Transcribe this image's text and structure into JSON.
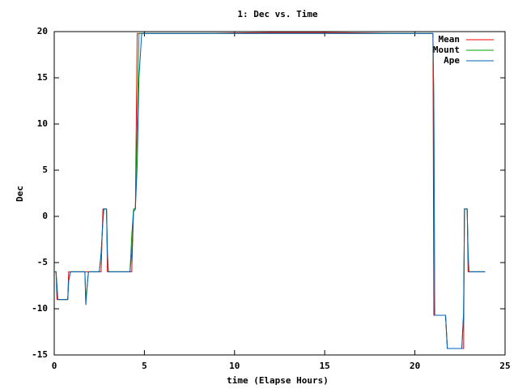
{
  "chart_data": {
    "type": "line",
    "title": "1: Dec vs. Time",
    "xlabel": "time (Elapse Hours)",
    "ylabel": "Dec",
    "x": [
      0,
      0.1,
      0.15,
      0.2,
      0.75,
      0.8,
      0.9,
      1.7,
      1.75,
      1.85,
      1.9,
      2.5,
      2.6,
      2.7,
      2.75,
      2.9,
      2.95,
      3.0,
      4.2,
      4.3,
      4.4,
      4.5,
      4.6,
      4.7,
      4.85,
      8,
      12,
      15,
      19.5,
      21.0,
      21.05,
      21.1,
      21.7,
      21.8,
      22.6,
      22.7,
      22.75,
      22.9,
      22.95,
      23.0,
      23.9
    ],
    "series": [
      {
        "name": "Mean",
        "color": "#ff0000",
        "values": [
          -6,
          -6,
          -9,
          -9,
          -9,
          -6,
          -6,
          -6,
          -6,
          -6,
          -6,
          -6,
          -6,
          0.8,
          0.8,
          0.8,
          -6,
          -6,
          -6,
          -6,
          0.8,
          0.8,
          19.8,
          19.8,
          19.8,
          19.8,
          19.9,
          19.9,
          19.8,
          19.8,
          -10.7,
          -10.7,
          -10.7,
          -14.3,
          -14.3,
          -14.3,
          0.8,
          0.8,
          -6,
          -6,
          -6
        ]
      },
      {
        "name": "Mount",
        "color": "#00a000",
        "values": [
          -6,
          -6,
          -7.5,
          -9,
          -9,
          -7,
          -6,
          -6,
          -9,
          -7,
          -6,
          -6,
          -4,
          -0.5,
          0.8,
          0.8,
          -4,
          -6,
          -6,
          -2,
          0.8,
          0.8,
          10,
          19.8,
          19.8,
          19.8,
          19.8,
          19.8,
          19.8,
          19.8,
          12.3,
          -10.7,
          -10.7,
          -14.3,
          -14.3,
          -10.5,
          0.8,
          0.8,
          -4,
          -6,
          -6
        ]
      },
      {
        "name": "Ape",
        "color": "#0060c0",
        "values": [
          -6,
          -6,
          -7.5,
          -9,
          -9,
          -7,
          -6,
          -6,
          -9.6,
          -7,
          -6,
          -6,
          -4,
          -0.5,
          0.8,
          0.8,
          -4,
          -6,
          -6,
          -4,
          0.5,
          0.8,
          5.5,
          15,
          19.8,
          19.8,
          19.8,
          19.8,
          19.8,
          19.8,
          12.3,
          -10.7,
          -10.7,
          -14.3,
          -14.3,
          -10.5,
          0.8,
          0.8,
          -4,
          -6,
          -6
        ]
      }
    ],
    "xlim": [
      0,
      25
    ],
    "xticks": [
      0,
      5,
      10,
      15,
      20,
      25
    ],
    "ylim": [
      -15,
      20
    ],
    "yticks": [
      -15,
      -10,
      -5,
      0,
      5,
      10,
      15,
      20
    ],
    "legend": "upper-right"
  }
}
